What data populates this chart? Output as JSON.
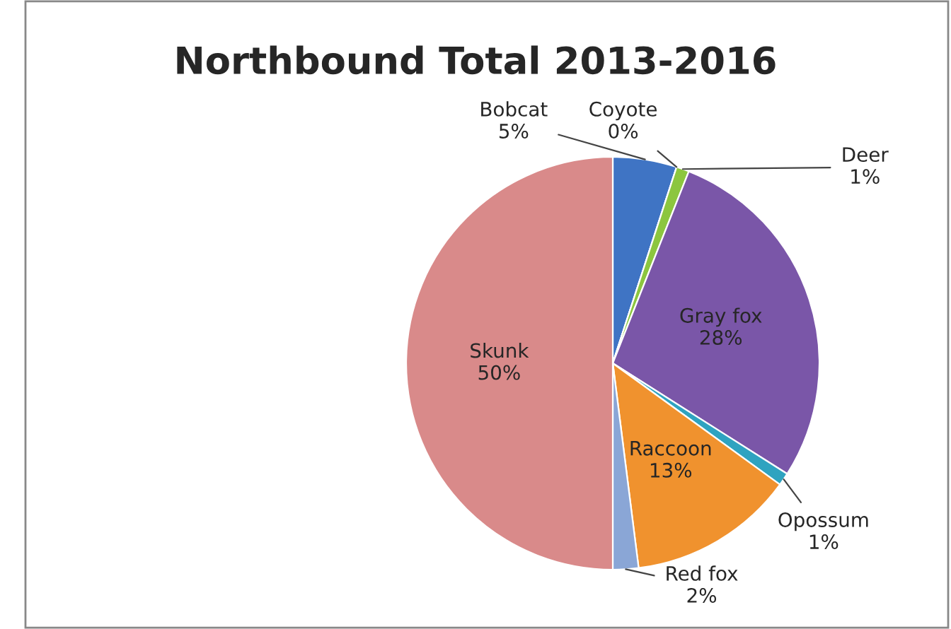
{
  "chart_data": {
    "type": "pie",
    "title": "Northbound Total 2013-2016",
    "categories": [
      "Bobcat",
      "Coyote",
      "Deer",
      "Gray fox",
      "Opossum",
      "Raccoon",
      "Red fox",
      "Skunk"
    ],
    "values": [
      5,
      0,
      1,
      28,
      1,
      13,
      2,
      50
    ],
    "colors": [
      "#3f74c4",
      "#d8d8c8",
      "#8cc63f",
      "#7a56a8",
      "#2fa3c0",
      "#f0922e",
      "#8aa6d6",
      "#d98a8a"
    ],
    "value_labels": [
      "5%",
      "0%",
      "1%",
      "28%",
      "1%",
      "13%",
      "2%",
      "50%"
    ],
    "legend": false
  }
}
